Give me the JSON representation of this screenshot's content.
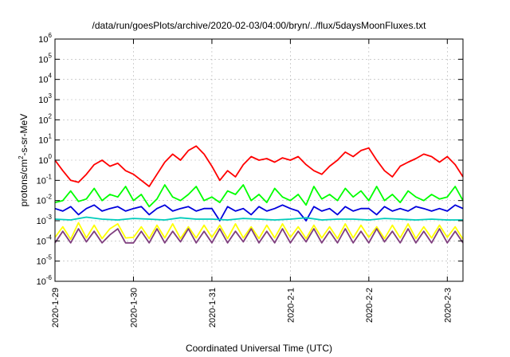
{
  "chart_data": {
    "type": "line",
    "title": "/data/run/goesPlots/archive/2020-02-03/04:00/bryn/../flux/5daysMoonFluxes.txt",
    "xlabel": "Coordinated Universal Time (UTC)",
    "ylabel": {
      "pre": "protons/cm",
      "sup": "2",
      "post": "-s-sr-MeV"
    },
    "yscale": "log",
    "ylim": [
      1e-06,
      1000000.0
    ],
    "xlim": [
      0.0,
      5.2
    ],
    "grid": true,
    "y_ticks": [
      {
        "value": 1e-06,
        "base": "10",
        "exp": "-6"
      },
      {
        "value": 1e-05,
        "base": "10",
        "exp": "-5"
      },
      {
        "value": 0.0001,
        "base": "10",
        "exp": "-4"
      },
      {
        "value": 0.001,
        "base": "10",
        "exp": "-3"
      },
      {
        "value": 0.01,
        "base": "10",
        "exp": "-2"
      },
      {
        "value": 0.1,
        "base": "10",
        "exp": "-1"
      },
      {
        "value": 1,
        "base": "10",
        "exp": "0"
      },
      {
        "value": 10,
        "base": "10",
        "exp": "1"
      },
      {
        "value": 100,
        "base": "10",
        "exp": "2"
      },
      {
        "value": 1000.0,
        "base": "10",
        "exp": "3"
      },
      {
        "value": 10000.0,
        "base": "10",
        "exp": "4"
      },
      {
        "value": 100000.0,
        "base": "10",
        "exp": "5"
      },
      {
        "value": 1000000.0,
        "base": "10",
        "exp": "6"
      }
    ],
    "x_ticks": [
      {
        "value": 0,
        "label": "2020-1-29"
      },
      {
        "value": 1,
        "label": "2020-1-30"
      },
      {
        "value": 2,
        "label": "2020-1-31"
      },
      {
        "value": 3,
        "label": "2020-2-1"
      },
      {
        "value": 4,
        "label": "2020-2-2"
      },
      {
        "value": 5,
        "label": "2020-2-3"
      }
    ],
    "series": [
      {
        "color": "#ff0000",
        "x": [
          0.0,
          0.1,
          0.2,
          0.3,
          0.4,
          0.5,
          0.6,
          0.7,
          0.8,
          0.9,
          1.0,
          1.1,
          1.2,
          1.3,
          1.4,
          1.5,
          1.6,
          1.7,
          1.8,
          1.9,
          2.0,
          2.1,
          2.2,
          2.3,
          2.4,
          2.5,
          2.6,
          2.7,
          2.8,
          2.9,
          3.0,
          3.1,
          3.2,
          3.3,
          3.4,
          3.5,
          3.6,
          3.7,
          3.8,
          3.9,
          4.0,
          4.1,
          4.2,
          4.3,
          4.4,
          4.5,
          4.6,
          4.7,
          4.8,
          4.9,
          5.0,
          5.1,
          5.2
        ],
        "values": [
          1.0,
          0.3,
          0.1,
          0.08,
          0.2,
          0.6,
          1.0,
          0.5,
          0.7,
          0.3,
          0.2,
          0.1,
          0.05,
          0.2,
          0.8,
          2.0,
          1.0,
          3.0,
          5.0,
          2.0,
          0.5,
          0.1,
          0.3,
          0.15,
          0.6,
          1.5,
          1.0,
          1.2,
          0.8,
          1.3,
          1.0,
          1.5,
          0.6,
          0.3,
          0.2,
          0.5,
          1.0,
          2.5,
          1.5,
          3.0,
          4.0,
          1.0,
          0.3,
          0.15,
          0.5,
          0.8,
          1.2,
          2.0,
          1.5,
          0.8,
          1.5,
          0.6,
          0.15
        ]
      },
      {
        "color": "#00ff00",
        "x": [
          0.0,
          0.1,
          0.2,
          0.3,
          0.4,
          0.5,
          0.6,
          0.7,
          0.8,
          0.9,
          1.0,
          1.1,
          1.2,
          1.3,
          1.4,
          1.5,
          1.6,
          1.7,
          1.8,
          1.9,
          2.0,
          2.1,
          2.2,
          2.3,
          2.4,
          2.5,
          2.6,
          2.7,
          2.8,
          2.9,
          3.0,
          3.1,
          3.2,
          3.3,
          3.4,
          3.5,
          3.6,
          3.7,
          3.8,
          3.9,
          4.0,
          4.1,
          4.2,
          4.3,
          4.4,
          4.5,
          4.6,
          4.7,
          4.8,
          4.9,
          5.0,
          5.1,
          5.2
        ],
        "values": [
          0.008,
          0.01,
          0.03,
          0.009,
          0.012,
          0.04,
          0.01,
          0.02,
          0.015,
          0.05,
          0.01,
          0.02,
          0.005,
          0.012,
          0.06,
          0.015,
          0.01,
          0.02,
          0.05,
          0.01,
          0.015,
          0.008,
          0.03,
          0.02,
          0.06,
          0.01,
          0.02,
          0.008,
          0.04,
          0.015,
          0.01,
          0.02,
          0.006,
          0.05,
          0.012,
          0.02,
          0.01,
          0.04,
          0.015,
          0.03,
          0.01,
          0.05,
          0.01,
          0.02,
          0.008,
          0.03,
          0.015,
          0.01,
          0.02,
          0.012,
          0.015,
          0.05,
          0.01
        ]
      },
      {
        "color": "#0000dd",
        "x": [
          0.0,
          0.1,
          0.2,
          0.3,
          0.4,
          0.5,
          0.6,
          0.7,
          0.8,
          0.9,
          1.0,
          1.1,
          1.2,
          1.3,
          1.4,
          1.5,
          1.6,
          1.7,
          1.8,
          1.9,
          2.0,
          2.1,
          2.2,
          2.3,
          2.4,
          2.5,
          2.6,
          2.7,
          2.8,
          2.9,
          3.0,
          3.1,
          3.2,
          3.3,
          3.4,
          3.5,
          3.6,
          3.7,
          3.8,
          3.9,
          4.0,
          4.1,
          4.2,
          4.3,
          4.4,
          4.5,
          4.6,
          4.7,
          4.8,
          4.9,
          5.0,
          5.1,
          5.2
        ],
        "values": [
          0.004,
          0.003,
          0.005,
          0.002,
          0.004,
          0.006,
          0.003,
          0.004,
          0.005,
          0.003,
          0.004,
          0.005,
          0.002,
          0.004,
          0.006,
          0.003,
          0.004,
          0.005,
          0.003,
          0.004,
          0.004,
          0.001,
          0.005,
          0.003,
          0.004,
          0.002,
          0.005,
          0.003,
          0.004,
          0.006,
          0.004,
          0.003,
          0.001,
          0.005,
          0.003,
          0.004,
          0.002,
          0.005,
          0.003,
          0.004,
          0.004,
          0.002,
          0.005,
          0.003,
          0.004,
          0.003,
          0.005,
          0.004,
          0.003,
          0.004,
          0.003,
          0.006,
          0.004
        ]
      },
      {
        "color": "#00ccbb",
        "x": [
          0.0,
          0.2,
          0.4,
          0.6,
          0.8,
          1.0,
          1.2,
          1.4,
          1.6,
          1.8,
          2.0,
          2.2,
          2.4,
          2.6,
          2.8,
          3.0,
          3.2,
          3.4,
          3.6,
          3.8,
          4.0,
          4.2,
          4.4,
          4.6,
          4.8,
          5.0,
          5.2
        ],
        "values": [
          0.0012,
          0.0011,
          0.0015,
          0.0012,
          0.0011,
          0.0013,
          0.0012,
          0.0011,
          0.0014,
          0.0012,
          0.0012,
          0.0011,
          0.0013,
          0.0012,
          0.0011,
          0.0012,
          0.0014,
          0.0011,
          0.0012,
          0.0012,
          0.0011,
          0.0013,
          0.0012,
          0.0011,
          0.0012,
          0.0011,
          0.0011
        ]
      },
      {
        "color": "#ffff00",
        "x": [
          0.0,
          0.1,
          0.2,
          0.3,
          0.4,
          0.5,
          0.6,
          0.7,
          0.8,
          0.9,
          1.0,
          1.1,
          1.2,
          1.3,
          1.4,
          1.5,
          1.6,
          1.7,
          1.8,
          1.9,
          2.0,
          2.1,
          2.2,
          2.3,
          2.4,
          2.5,
          2.6,
          2.7,
          2.8,
          2.9,
          3.0,
          3.1,
          3.2,
          3.3,
          3.4,
          3.5,
          3.6,
          3.7,
          3.8,
          3.9,
          4.0,
          4.1,
          4.2,
          4.3,
          4.4,
          4.5,
          4.6,
          4.7,
          4.8,
          4.9,
          5.0,
          5.1,
          5.2
        ],
        "values": [
          0.00015,
          0.0005,
          0.00012,
          0.0008,
          0.00014,
          0.0006,
          0.00013,
          0.0004,
          0.0007,
          0.00014,
          0.00015,
          0.0005,
          0.00013,
          0.0006,
          0.00014,
          0.0007,
          0.00013,
          0.0005,
          0.00014,
          0.0006,
          0.00015,
          0.0006,
          0.00013,
          0.0007,
          0.00014,
          0.0005,
          0.00013,
          0.0006,
          0.00014,
          0.0007,
          0.00015,
          0.0005,
          0.00013,
          0.0006,
          0.00014,
          0.0005,
          0.00013,
          0.0007,
          0.00014,
          0.0006,
          0.00015,
          0.0005,
          0.00013,
          0.0006,
          0.00014,
          0.0007,
          0.00013,
          0.0005,
          0.00014,
          0.0006,
          0.00015,
          0.0005,
          0.00012
        ]
      },
      {
        "color": "#7f3f7f",
        "x": [
          0.0,
          0.1,
          0.2,
          0.3,
          0.4,
          0.5,
          0.6,
          0.7,
          0.8,
          0.9,
          1.0,
          1.1,
          1.2,
          1.3,
          1.4,
          1.5,
          1.6,
          1.7,
          1.8,
          1.9,
          2.0,
          2.1,
          2.2,
          2.3,
          2.4,
          2.5,
          2.6,
          2.7,
          2.8,
          2.9,
          3.0,
          3.1,
          3.2,
          3.3,
          3.4,
          3.5,
          3.6,
          3.7,
          3.8,
          3.9,
          4.0,
          4.1,
          4.2,
          4.3,
          4.4,
          4.5,
          4.6,
          4.7,
          4.8,
          4.9,
          5.0,
          5.1,
          5.2
        ],
        "values": [
          8e-05,
          0.0003,
          8e-05,
          0.0004,
          9e-05,
          0.0003,
          8e-05,
          0.0002,
          0.0004,
          8e-05,
          8e-05,
          0.0003,
          8e-05,
          0.0004,
          8e-05,
          0.0003,
          9e-05,
          0.0004,
          8e-05,
          0.0003,
          8e-05,
          0.0004,
          8e-05,
          0.0003,
          9e-05,
          0.0004,
          8e-05,
          0.0003,
          8e-05,
          0.0004,
          8e-05,
          0.0003,
          9e-05,
          0.0004,
          8e-05,
          0.0003,
          8e-05,
          0.0004,
          8e-05,
          0.0003,
          8e-05,
          0.0004,
          9e-05,
          0.0003,
          8e-05,
          0.0004,
          8e-05,
          0.0003,
          8e-05,
          0.0004,
          8e-05,
          0.0003,
          8e-05
        ]
      }
    ]
  }
}
